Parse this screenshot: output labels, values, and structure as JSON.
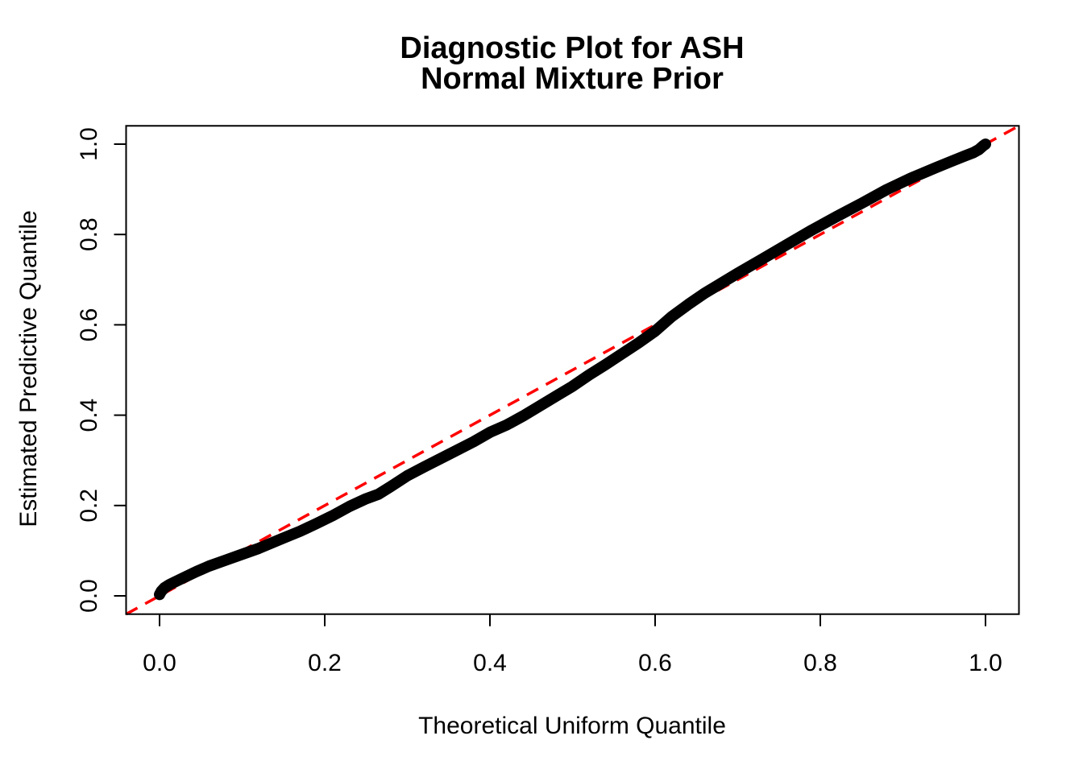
{
  "chart_data": {
    "type": "line",
    "title_line1": "Diagnostic Plot for ASH",
    "title_line2": "Normal Mixture Prior",
    "xlabel": "Theoretical Uniform Quantile",
    "ylabel": "Estimated Predictive Quantile",
    "xlim": [
      -0.0405,
      1.0405
    ],
    "ylim": [
      -0.0405,
      1.0405
    ],
    "grid": false,
    "legend": "none",
    "x_tick_values": [
      0.0,
      0.2,
      0.4,
      0.6,
      0.8,
      1.0
    ],
    "x_tick_labels": [
      "0.0",
      "0.2",
      "0.4",
      "0.6",
      "0.8",
      "1.0"
    ],
    "y_tick_values": [
      0.0,
      0.2,
      0.4,
      0.6,
      0.8,
      1.0
    ],
    "y_tick_labels": [
      "0.0",
      "0.2",
      "0.4",
      "0.6",
      "0.8",
      "1.0"
    ],
    "series": [
      {
        "name": "estimated-predictive-quantile-curve",
        "type": "line",
        "color": "#000000",
        "stroke_width": 14,
        "style": "solid",
        "points": [
          [
            0.0,
            0.003
          ],
          [
            0.002,
            0.01
          ],
          [
            0.006,
            0.018
          ],
          [
            0.012,
            0.025
          ],
          [
            0.02,
            0.032
          ],
          [
            0.03,
            0.041
          ],
          [
            0.045,
            0.054
          ],
          [
            0.06,
            0.066
          ],
          [
            0.08,
            0.079
          ],
          [
            0.1,
            0.092
          ],
          [
            0.12,
            0.105
          ],
          [
            0.15,
            0.128
          ],
          [
            0.17,
            0.143
          ],
          [
            0.19,
            0.16
          ],
          [
            0.21,
            0.178
          ],
          [
            0.23,
            0.198
          ],
          [
            0.25,
            0.215
          ],
          [
            0.265,
            0.225
          ],
          [
            0.28,
            0.242
          ],
          [
            0.3,
            0.266
          ],
          [
            0.32,
            0.285
          ],
          [
            0.35,
            0.313
          ],
          [
            0.38,
            0.341
          ],
          [
            0.4,
            0.362
          ],
          [
            0.42,
            0.378
          ],
          [
            0.44,
            0.398
          ],
          [
            0.46,
            0.42
          ],
          [
            0.48,
            0.442
          ],
          [
            0.5,
            0.464
          ],
          [
            0.52,
            0.489
          ],
          [
            0.54,
            0.512
          ],
          [
            0.56,
            0.536
          ],
          [
            0.58,
            0.56
          ],
          [
            0.6,
            0.586
          ],
          [
            0.62,
            0.618
          ],
          [
            0.64,
            0.645
          ],
          [
            0.66,
            0.67
          ],
          [
            0.68,
            0.692
          ],
          [
            0.7,
            0.714
          ],
          [
            0.73,
            0.746
          ],
          [
            0.76,
            0.778
          ],
          [
            0.79,
            0.81
          ],
          [
            0.82,
            0.84
          ],
          [
            0.85,
            0.869
          ],
          [
            0.88,
            0.899
          ],
          [
            0.91,
            0.925
          ],
          [
            0.94,
            0.948
          ],
          [
            0.96,
            0.963
          ],
          [
            0.975,
            0.974
          ],
          [
            0.985,
            0.981
          ],
          [
            0.992,
            0.988
          ],
          [
            0.997,
            0.996
          ],
          [
            1.0,
            1.0
          ]
        ]
      },
      {
        "name": "reference-diagonal",
        "type": "line",
        "color": "#FF0000",
        "stroke_width": 3.5,
        "style": "dashed",
        "points": [
          [
            -0.0405,
            -0.0405
          ],
          [
            1.0405,
            1.0405
          ]
        ]
      }
    ]
  },
  "colors": {
    "background": "#FFFFFF",
    "axis": "#000000",
    "curve": "#000000",
    "reference_line": "#FF0000"
  }
}
